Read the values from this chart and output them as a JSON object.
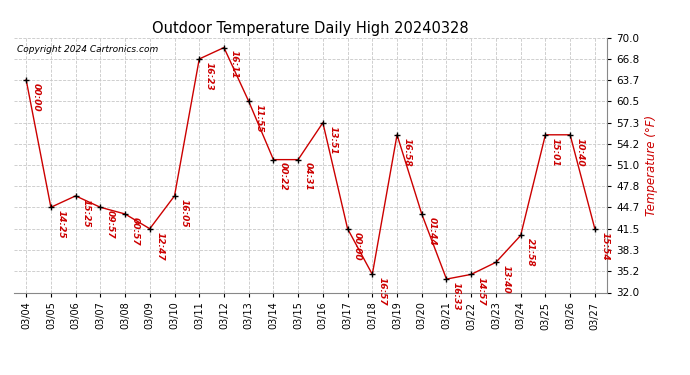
{
  "title": "Outdoor Temperature Daily High 20240328",
  "copyright": "Copyright 2024 Cartronics.com",
  "ylabel": "Temperature (°F)",
  "background_color": "#ffffff",
  "grid_color": "#c8c8c8",
  "line_color": "#cc0000",
  "marker_color": "#000000",
  "label_color": "#cc0000",
  "dates": [
    "03/04",
    "03/05",
    "03/06",
    "03/07",
    "03/08",
    "03/09",
    "03/10",
    "03/11",
    "03/12",
    "03/13",
    "03/14",
    "03/15",
    "03/16",
    "03/17",
    "03/18",
    "03/19",
    "03/20",
    "03/21",
    "03/22",
    "03/23",
    "03/24",
    "03/25",
    "03/26",
    "03/27"
  ],
  "values": [
    63.7,
    44.7,
    46.4,
    44.7,
    43.7,
    41.5,
    46.4,
    66.8,
    68.5,
    60.5,
    51.8,
    51.8,
    57.3,
    41.5,
    34.7,
    55.5,
    43.7,
    34.0,
    34.7,
    36.5,
    40.5,
    55.5,
    55.5,
    41.5
  ],
  "time_labels": [
    "00:00",
    "14:25",
    "15:25",
    "09:57",
    "00:57",
    "12:47",
    "16:05",
    "16:23",
    "16:11",
    "11:55",
    "00:22",
    "04:31",
    "13:51",
    "00:00",
    "16:57",
    "16:58",
    "01:44",
    "16:33",
    "14:57",
    "13:40",
    "21:58",
    "15:01",
    "10:40",
    "15:54"
  ],
  "ylim_min": 32.0,
  "ylim_max": 70.0,
  "yticks": [
    32.0,
    35.2,
    38.3,
    41.5,
    44.7,
    47.8,
    51.0,
    54.2,
    57.3,
    60.5,
    63.7,
    66.8,
    70.0
  ]
}
